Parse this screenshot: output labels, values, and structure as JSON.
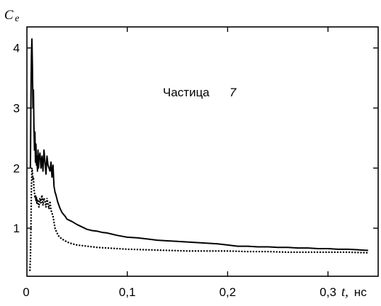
{
  "chart_data": {
    "type": "line",
    "ylabel_symbol": "C",
    "ylabel_subscript": "e",
    "xlabel_symbol": "t,",
    "xlabel_unit": "нс",
    "annotation_text": "Частица",
    "annotation_number": "7",
    "xlim": [
      0,
      0.35
    ],
    "ylim": [
      0.2,
      4.35
    ],
    "x_ticks": [
      0,
      0.1,
      0.2,
      0.3
    ],
    "x_tick_labels": [
      "0",
      "0,1",
      "0,2",
      "0,3"
    ],
    "y_ticks": [
      1,
      2,
      3,
      4
    ],
    "y_tick_labels": [
      "1",
      "2",
      "3",
      "4"
    ],
    "grid": false,
    "series": [
      {
        "style": "solid",
        "x": [
          0.0035,
          0.004,
          0.0045,
          0.005,
          0.0055,
          0.006,
          0.0065,
          0.007,
          0.0075,
          0.008,
          0.0085,
          0.009,
          0.0095,
          0.01,
          0.0105,
          0.011,
          0.0115,
          0.012,
          0.013,
          0.014,
          0.015,
          0.016,
          0.017,
          0.018,
          0.019,
          0.02,
          0.021,
          0.022,
          0.023,
          0.024,
          0.025,
          0.026,
          0.027,
          0.028,
          0.029,
          0.03,
          0.031,
          0.033,
          0.035,
          0.038,
          0.04,
          0.045,
          0.05,
          0.055,
          0.06,
          0.065,
          0.07,
          0.075,
          0.08,
          0.085,
          0.09,
          0.1,
          0.11,
          0.12,
          0.13,
          0.14,
          0.15,
          0.16,
          0.17,
          0.18,
          0.19,
          0.2,
          0.21,
          0.22,
          0.23,
          0.24,
          0.25,
          0.26,
          0.27,
          0.28,
          0.29,
          0.3,
          0.31,
          0.32,
          0.33,
          0.34
        ],
        "y": [
          2.0,
          3.2,
          3.9,
          4.15,
          3.7,
          3.0,
          3.3,
          2.7,
          2.3,
          2.6,
          2.1,
          2.4,
          2.05,
          2.2,
          1.95,
          2.3,
          2.0,
          2.15,
          2.25,
          2.0,
          2.2,
          1.95,
          2.3,
          2.1,
          1.9,
          2.2,
          2.05,
          2.0,
          1.95,
          2.1,
          1.85,
          2.05,
          1.7,
          1.6,
          1.55,
          1.48,
          1.42,
          1.33,
          1.26,
          1.2,
          1.15,
          1.11,
          1.06,
          1.02,
          0.98,
          0.96,
          0.95,
          0.93,
          0.92,
          0.9,
          0.88,
          0.85,
          0.84,
          0.82,
          0.8,
          0.79,
          0.78,
          0.77,
          0.76,
          0.75,
          0.74,
          0.72,
          0.7,
          0.7,
          0.69,
          0.69,
          0.68,
          0.68,
          0.67,
          0.67,
          0.66,
          0.66,
          0.65,
          0.65,
          0.64,
          0.63
        ]
      },
      {
        "style": "dotted",
        "x": [
          0.003,
          0.0035,
          0.004,
          0.0045,
          0.005,
          0.0055,
          0.006,
          0.0065,
          0.007,
          0.0075,
          0.008,
          0.0085,
          0.009,
          0.0095,
          0.01,
          0.011,
          0.012,
          0.013,
          0.014,
          0.015,
          0.016,
          0.017,
          0.018,
          0.019,
          0.02,
          0.021,
          0.022,
          0.023,
          0.024,
          0.025,
          0.026,
          0.027,
          0.028,
          0.03,
          0.032,
          0.035,
          0.04,
          0.045,
          0.05,
          0.06,
          0.07,
          0.08,
          0.09,
          0.1,
          0.12,
          0.14,
          0.16,
          0.18,
          0.2,
          0.22,
          0.24,
          0.26,
          0.28,
          0.3,
          0.32,
          0.34
        ],
        "y": [
          0.3,
          0.5,
          1.0,
          1.7,
          2.0,
          1.95,
          1.8,
          1.85,
          1.65,
          1.6,
          1.5,
          1.55,
          1.45,
          1.52,
          1.4,
          1.48,
          1.35,
          1.5,
          1.42,
          1.55,
          1.38,
          1.5,
          1.45,
          1.35,
          1.5,
          1.4,
          1.32,
          1.45,
          1.3,
          1.25,
          1.2,
          1.1,
          1.0,
          0.92,
          0.86,
          0.82,
          0.77,
          0.74,
          0.72,
          0.7,
          0.68,
          0.67,
          0.66,
          0.65,
          0.64,
          0.63,
          0.62,
          0.62,
          0.62,
          0.61,
          0.61,
          0.6,
          0.6,
          0.6,
          0.6,
          0.59
        ]
      }
    ]
  }
}
